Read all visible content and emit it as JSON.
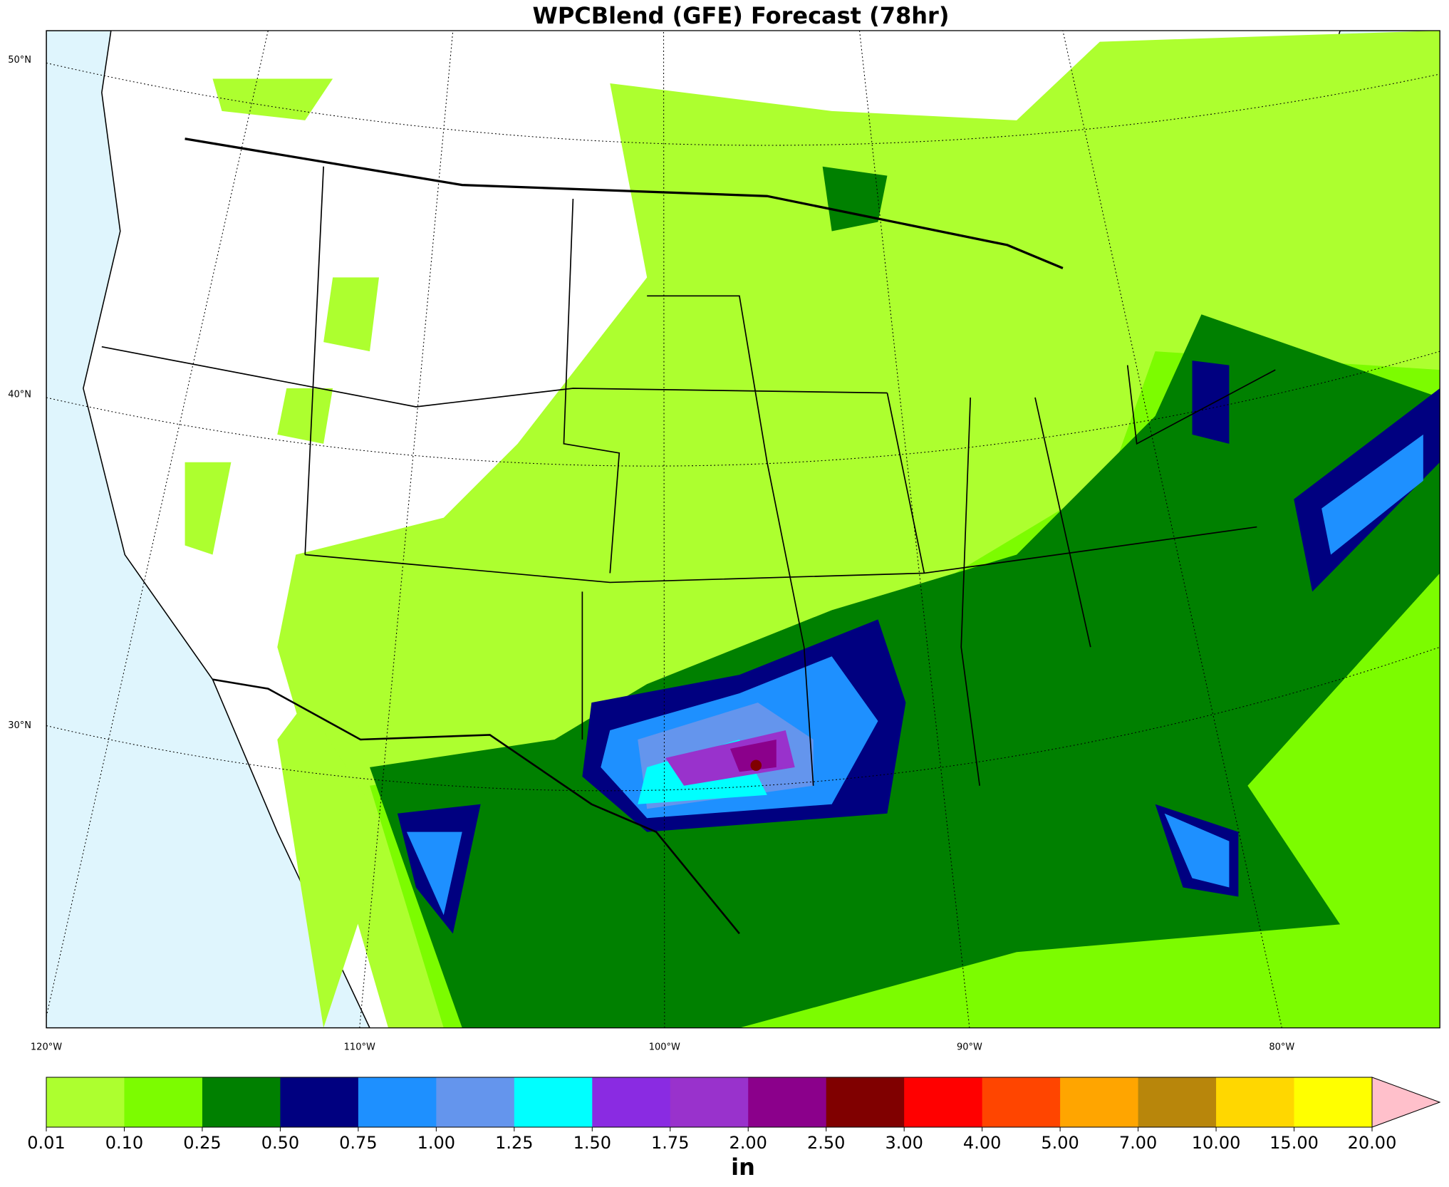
{
  "title": "WPCBlend (GFE) Forecast (78hr)",
  "lat_labels": [
    "50°N",
    "40°N",
    "30°N"
  ],
  "lon_labels": [
    "120°W",
    "110°W",
    "100°W",
    "90°W",
    "80°W"
  ],
  "colorbar": {
    "unit": "in",
    "levels": [
      {
        "value": 0.01,
        "label": "0.01"
      },
      {
        "value": 0.1,
        "label": "0.10"
      },
      {
        "value": 0.25,
        "label": "0.25"
      },
      {
        "value": 0.5,
        "label": "0.50"
      },
      {
        "value": 0.75,
        "label": "0.75"
      },
      {
        "value": 1,
        "label": "1.00"
      },
      {
        "value": 1.25,
        "label": "1.25"
      },
      {
        "value": 1.5,
        "label": "1.50"
      },
      {
        "value": 1.75,
        "label": "1.75"
      },
      {
        "value": 2,
        "label": "2.00"
      },
      {
        "value": 2.5,
        "label": "2.50"
      },
      {
        "value": 3,
        "label": "3.00"
      },
      {
        "value": 4,
        "label": "4.00"
      },
      {
        "value": 5,
        "label": "5.00"
      },
      {
        "value": 7,
        "label": "7.00"
      },
      {
        "value": 10,
        "label": "10.00"
      },
      {
        "value": 15,
        "label": "15.00"
      },
      {
        "value": 20,
        "label": "20.00"
      }
    ],
    "colors": [
      "#adff2f",
      "#7cfc00",
      "#008000",
      "#000080",
      "#1e90ff",
      "#6495ed",
      "#00ffff",
      "#8a2be2",
      "#9932cc",
      "#8b008b",
      "#800000",
      "#ff0000",
      "#ff4500",
      "#ffa500",
      "#b8860b",
      "#ffd700",
      "#ffff00"
    ],
    "extend_color": "#ffc0cb"
  }
}
